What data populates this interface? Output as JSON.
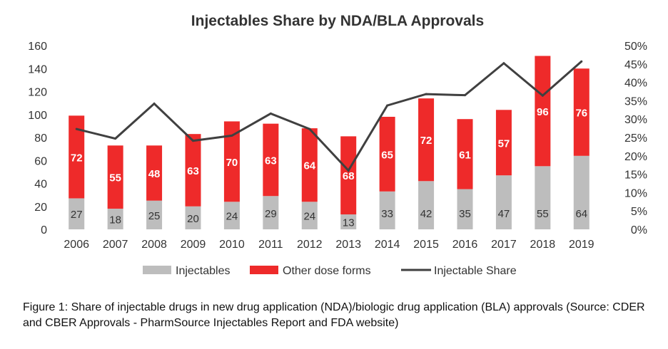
{
  "chart_data": {
    "type": "bar",
    "stacked": true,
    "title": "Injectables Share by NDA/BLA Approvals",
    "categories": [
      "2006",
      "2007",
      "2008",
      "2009",
      "2010",
      "2011",
      "2012",
      "2013",
      "2014",
      "2015",
      "2016",
      "2017",
      "2018",
      "2019"
    ],
    "series": [
      {
        "name": "Injectables",
        "type": "bar",
        "axis": "left",
        "color": "#bdbdbd",
        "values": [
          27,
          18,
          25,
          20,
          24,
          29,
          24,
          13,
          33,
          42,
          35,
          47,
          55,
          64
        ]
      },
      {
        "name": "Other dose forms",
        "type": "bar",
        "axis": "left",
        "color": "#ee2a2a",
        "values": [
          72,
          55,
          48,
          63,
          70,
          63,
          64,
          68,
          65,
          72,
          61,
          57,
          96,
          76
        ]
      },
      {
        "name": "Injectable Share",
        "type": "line",
        "axis": "right",
        "color": "#404040",
        "values": [
          27.3,
          24.7,
          34.2,
          24.1,
          25.5,
          31.5,
          27.3,
          16.0,
          33.7,
          36.8,
          36.5,
          45.2,
          36.4,
          45.7
        ]
      }
    ],
    "y_left": {
      "min": 0,
      "max": 160,
      "ticks": [
        "0",
        "20",
        "40",
        "60",
        "80",
        "100",
        "120",
        "140",
        "160"
      ]
    },
    "y_right": {
      "min": 0,
      "max": 50,
      "ticks": [
        "0%",
        "5%",
        "10%",
        "15%",
        "20%",
        "25%",
        "30%",
        "35%",
        "40%",
        "45%",
        "50%"
      ]
    },
    "grid": false,
    "legend_position": "bottom"
  },
  "caption": "Figure 1: Share of injectable drugs in new drug application (NDA)/biologic drug application (BLA) approvals (Source: CDER and CBER Approvals - PharmSource Injectables Report and FDA website)"
}
